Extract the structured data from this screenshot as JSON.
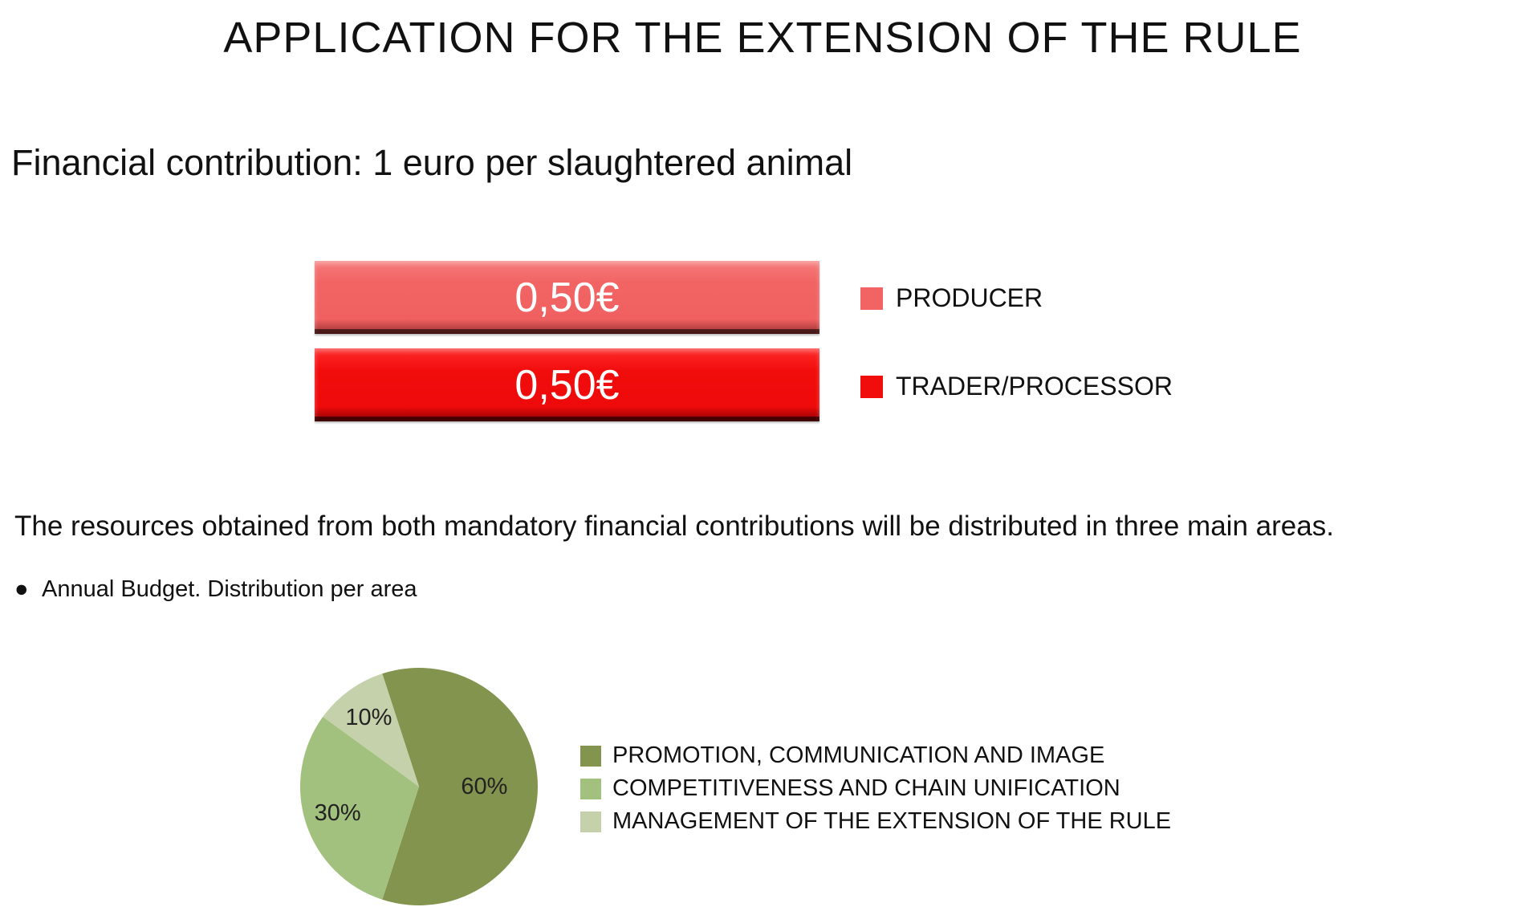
{
  "header": {
    "title": "APPLICATION FOR THE EXTENSION OF THE RULE",
    "subtitle": "Financial contribution: 1 euro per slaughtered animal"
  },
  "body_text": {
    "paragraph": "The resources obtained from both mandatory financial contributions will be distributed in three main areas.",
    "bullet_symbol": "●",
    "bullet": "Annual Budget. Distribution per area"
  },
  "chart_data": [
    {
      "type": "bar",
      "orientation": "horizontal",
      "categories": [
        "PRODUCER",
        "TRADER/PROCESSOR"
      ],
      "values": [
        0.5,
        0.5
      ],
      "unit": "€",
      "value_labels": [
        "0,50€",
        "0,50€"
      ],
      "colors": [
        "#f26464",
        "#f20d0d"
      ],
      "legend_position": "right"
    },
    {
      "type": "pie",
      "categories": [
        "PROMOTION, COMMUNICATION AND IMAGE",
        "COMPETITIVENESS AND CHAIN UNIFICATION",
        "MANAGEMENT OF THE EXTENSION OF THE RULE"
      ],
      "values": [
        60,
        30,
        10
      ],
      "value_labels": [
        "60%",
        "30%",
        "10%"
      ],
      "colors": [
        "#82944e",
        "#a3c17e",
        "#c5d1ab"
      ],
      "legend_position": "right"
    }
  ]
}
